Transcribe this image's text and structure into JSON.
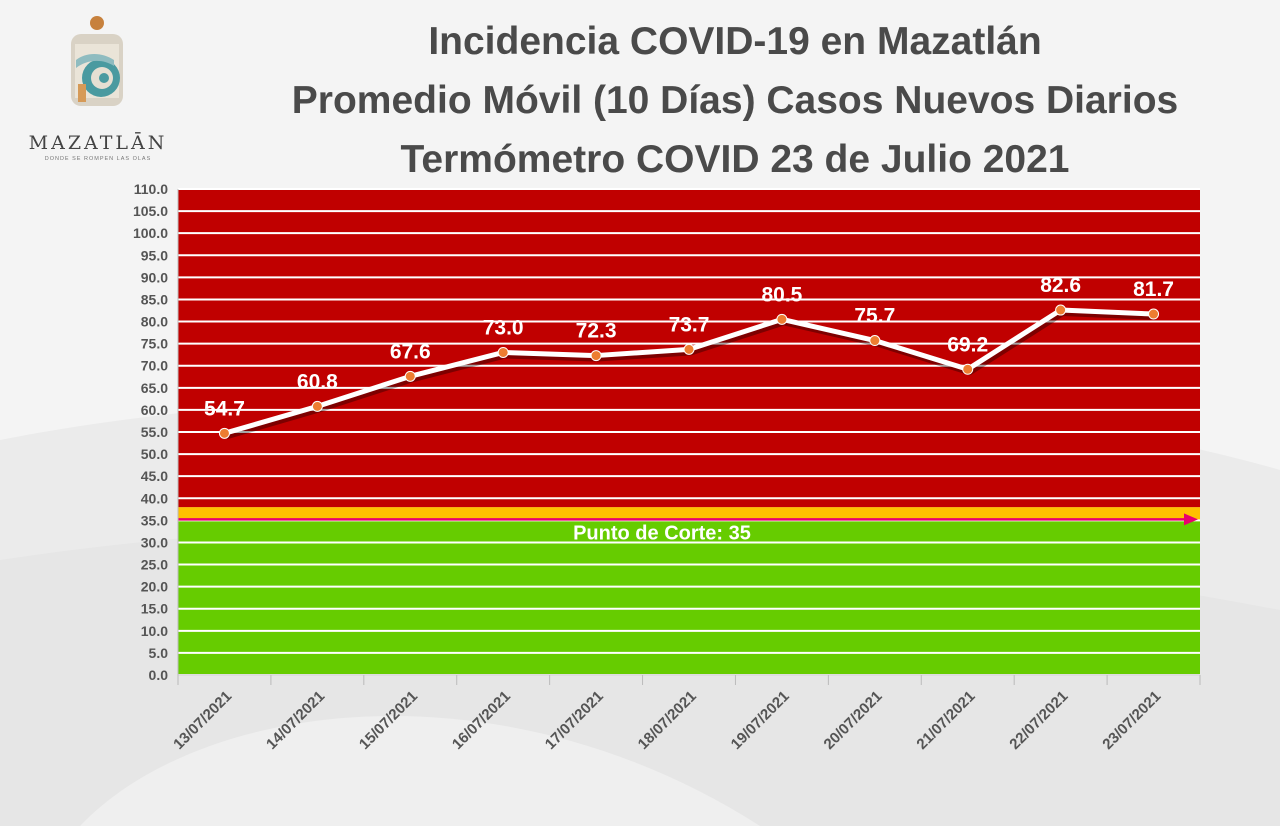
{
  "logo": {
    "name": "MAZATLĀN",
    "tagline": "DONDE SE ROMPEN LAS OLAS"
  },
  "colors": {
    "danger_zone": "#c00000",
    "safe_zone": "#66cc00",
    "threshold_band": "#ffc000",
    "threshold_arrow": "#e8006e",
    "line": "#ffffff",
    "marker": "#ed7d31"
  },
  "chart_data": {
    "type": "line",
    "title": [
      "Incidencia COVID-19 en Mazatlán",
      "Promedio Móvil (10 Días) Casos Nuevos Diarios",
      "Termómetro COVID 23 de Julio 2021"
    ],
    "categories": [
      "13/07/2021",
      "14/07/2021",
      "15/07/2021",
      "16/07/2021",
      "17/07/2021",
      "18/07/2021",
      "19/07/2021",
      "20/07/2021",
      "21/07/2021",
      "22/07/2021",
      "23/07/2021"
    ],
    "values": [
      54.7,
      60.8,
      67.6,
      73.0,
      72.3,
      73.7,
      80.5,
      75.7,
      69.2,
      82.6,
      81.7
    ],
    "data_labels": [
      "54.7",
      "60.8",
      "67.6",
      "73.0",
      "72.3",
      "73.7",
      "80.5",
      "75.7",
      "69.2",
      "82.6",
      "81.7"
    ],
    "ylim": [
      0,
      110
    ],
    "y_ticks": [
      "0.0",
      "5.0",
      "10.0",
      "15.0",
      "20.0",
      "25.0",
      "30.0",
      "35.0",
      "40.0",
      "45.0",
      "50.0",
      "55.0",
      "60.0",
      "65.0",
      "70.0",
      "75.0",
      "80.0",
      "85.0",
      "90.0",
      "95.0",
      "100.0",
      "105.0",
      "110.0"
    ],
    "grid": true,
    "threshold": {
      "value": 35,
      "label": "Punto de Corte: 35"
    },
    "zones": [
      {
        "name": "green",
        "from": 0,
        "to": 35
      },
      {
        "name": "yellow",
        "from": 35,
        "to": 38
      },
      {
        "name": "red",
        "from": 38,
        "to": 110
      }
    ]
  }
}
